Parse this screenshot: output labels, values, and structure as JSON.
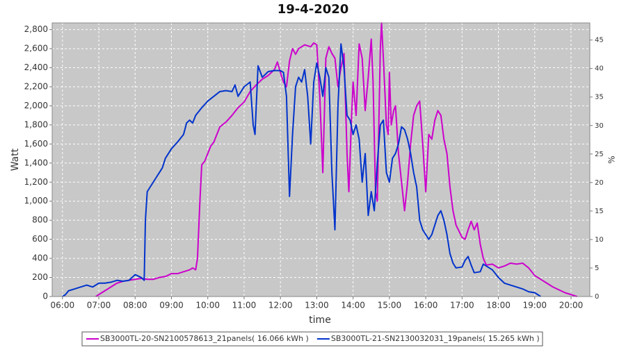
{
  "chart_data": {
    "type": "line",
    "title": "19-4-2020",
    "x_label": "time",
    "y_label": "Watt",
    "y2_label": "%",
    "xlim": [
      "05:43",
      "20:31"
    ],
    "xticks": [
      "06:00",
      "07:00",
      "08:00",
      "09:00",
      "10:00",
      "11:00",
      "12:00",
      "13:00",
      "14:00",
      "15:00",
      "16:00",
      "17:00",
      "18:00",
      "19:00",
      "20:00"
    ],
    "ylim": [
      0,
      2870
    ],
    "yticks": [
      0,
      200,
      400,
      600,
      800,
      {
        "value": 1000,
        "label": "1,000"
      },
      {
        "value": 1200,
        "label": "1,200"
      },
      {
        "value": 1400,
        "label": "1,400"
      },
      {
        "value": 1600,
        "label": "1,600"
      },
      {
        "value": 1800,
        "label": "1,800"
      },
      {
        "value": 2000,
        "label": "2,000"
      },
      {
        "value": 2200,
        "label": "2,200"
      },
      {
        "value": 2400,
        "label": "2,400"
      },
      {
        "value": 2600,
        "label": "2,600"
      },
      {
        "value": 2800,
        "label": "2,800"
      }
    ],
    "y2lim": [
      0,
      48
    ],
    "y2ticks": [
      0,
      5,
      10,
      15,
      20,
      25,
      30,
      35,
      40,
      45
    ],
    "grid": true,
    "legend": "bottom",
    "series": [
      {
        "name": "SB3000TL-20-SN2100578613_21panels( 16.066 kWh )",
        "color": "#cc00cc",
        "x": [
          "06:55",
          "07:00",
          "07:10",
          "07:20",
          "07:30",
          "07:40",
          "07:50",
          "08:00",
          "08:10",
          "08:20",
          "08:30",
          "08:40",
          "08:50",
          "09:00",
          "09:10",
          "09:20",
          "09:30",
          "09:35",
          "09:40",
          "09:43",
          "09:47",
          "09:50",
          "09:55",
          "10:00",
          "10:05",
          "10:10",
          "10:15",
          "10:20",
          "10:30",
          "10:40",
          "10:50",
          "11:00",
          "11:10",
          "11:20",
          "11:30",
          "11:40",
          "11:50",
          "11:55",
          "12:00",
          "12:05",
          "12:10",
          "12:15",
          "12:20",
          "12:25",
          "12:30",
          "12:40",
          "12:50",
          "12:55",
          "13:00",
          "13:05",
          "13:10",
          "13:15",
          "13:20",
          "13:25",
          "13:30",
          "13:35",
          "13:40",
          "13:45",
          "13:50",
          "13:53",
          "13:57",
          "14:00",
          "14:05",
          "14:10",
          "14:15",
          "14:20",
          "14:25",
          "14:30",
          "14:33",
          "14:37",
          "14:40",
          "14:45",
          "14:47",
          "14:50",
          "14:55",
          "14:58",
          "15:00",
          "15:03",
          "15:07",
          "15:10",
          "15:15",
          "15:20",
          "15:25",
          "15:30",
          "15:35",
          "15:40",
          "15:45",
          "15:50",
          "15:55",
          "16:00",
          "16:05",
          "16:10",
          "16:15",
          "16:20",
          "16:25",
          "16:30",
          "16:35",
          "16:40",
          "16:45",
          "16:50",
          "17:00",
          "17:05",
          "17:10",
          "17:15",
          "17:20",
          "17:25",
          "17:30",
          "17:35",
          "17:40",
          "17:50",
          "18:00",
          "18:10",
          "18:20",
          "18:30",
          "18:40",
          "18:50",
          "19:00",
          "19:10",
          "19:20",
          "19:30",
          "19:40",
          "19:50",
          "20:00",
          "20:10"
        ],
        "values": [
          0,
          20,
          60,
          100,
          140,
          160,
          170,
          180,
          190,
          180,
          180,
          200,
          210,
          240,
          240,
          260,
          280,
          300,
          280,
          400,
          1000,
          1380,
          1420,
          1500,
          1580,
          1620,
          1700,
          1780,
          1830,
          1900,
          1980,
          2040,
          2150,
          2220,
          2280,
          2320,
          2380,
          2460,
          2350,
          2250,
          2200,
          2470,
          2600,
          2540,
          2600,
          2640,
          2620,
          2660,
          2640,
          2100,
          1300,
          2500,
          2620,
          2550,
          2500,
          2200,
          2400,
          2550,
          1500,
          1100,
          1800,
          2250,
          1900,
          2650,
          2500,
          1950,
          2300,
          2700,
          2250,
          1100,
          1000,
          2600,
          2870,
          2500,
          1800,
          1700,
          2350,
          1800,
          1950,
          2000,
          1500,
          1200,
          900,
          1200,
          1600,
          1900,
          2000,
          2050,
          1600,
          1100,
          1700,
          1650,
          1850,
          1950,
          1900,
          1650,
          1500,
          1150,
          900,
          750,
          620,
          600,
          700,
          790,
          700,
          770,
          550,
          400,
          330,
          340,
          300,
          320,
          350,
          340,
          350,
          300,
          220,
          180,
          140,
          100,
          70,
          40,
          20,
          0
        ]
      },
      {
        "name": "SB3000TL-21-SN2130032031_19panels( 15.265 kWh )",
        "color": "#0033cc",
        "x": [
          "06:00",
          "06:05",
          "06:10",
          "06:20",
          "06:30",
          "06:40",
          "06:50",
          "07:00",
          "07:10",
          "07:20",
          "07:30",
          "07:40",
          "07:50",
          "08:00",
          "08:10",
          "08:15",
          "08:17",
          "08:20",
          "08:25",
          "08:30",
          "08:35",
          "08:40",
          "08:45",
          "08:50",
          "09:00",
          "09:10",
          "09:20",
          "09:25",
          "09:30",
          "09:35",
          "09:40",
          "09:50",
          "10:00",
          "10:10",
          "10:20",
          "10:30",
          "10:40",
          "10:45",
          "10:50",
          "11:00",
          "11:10",
          "11:15",
          "11:18",
          "11:23",
          "11:30",
          "11:40",
          "11:50",
          "12:00",
          "12:05",
          "12:10",
          "12:15",
          "12:20",
          "12:25",
          "12:30",
          "12:35",
          "12:40",
          "12:45",
          "12:50",
          "12:55",
          "13:00",
          "13:05",
          "13:10",
          "13:15",
          "13:20",
          "13:25",
          "13:30",
          "13:35",
          "13:40",
          "13:45",
          "13:50",
          "13:55",
          "14:00",
          "14:05",
          "14:10",
          "14:15",
          "14:20",
          "14:25",
          "14:30",
          "14:35",
          "14:40",
          "14:45",
          "14:50",
          "14:55",
          "15:00",
          "15:05",
          "15:10",
          "15:15",
          "15:20",
          "15:25",
          "15:30",
          "15:35",
          "15:40",
          "15:45",
          "15:50",
          "15:55",
          "16:00",
          "16:05",
          "16:10",
          "16:15",
          "16:20",
          "16:25",
          "16:30",
          "16:35",
          "16:40",
          "16:45",
          "16:50",
          "17:00",
          "17:05",
          "17:10",
          "17:15",
          "17:20",
          "17:30",
          "17:35",
          "17:40",
          "17:50",
          "18:00",
          "18:10",
          "18:20",
          "18:30",
          "18:40",
          "18:50",
          "19:00",
          "19:10"
        ],
        "values": [
          0,
          20,
          60,
          80,
          100,
          120,
          100,
          140,
          140,
          150,
          170,
          160,
          170,
          230,
          200,
          170,
          800,
          1100,
          1150,
          1200,
          1250,
          1300,
          1350,
          1450,
          1550,
          1620,
          1700,
          1820,
          1850,
          1820,
          1900,
          1980,
          2050,
          2100,
          2150,
          2160,
          2150,
          2220,
          2100,
          2200,
          2250,
          1800,
          1700,
          2420,
          2300,
          2360,
          2370,
          2370,
          2350,
          2100,
          1050,
          1700,
          2200,
          2300,
          2250,
          2380,
          2100,
          1600,
          2250,
          2450,
          2300,
          2100,
          2400,
          2300,
          1300,
          700,
          2000,
          2650,
          2400,
          1900,
          1850,
          1700,
          1800,
          1650,
          1200,
          1500,
          850,
          1100,
          900,
          1400,
          1800,
          1850,
          1300,
          1200,
          1450,
          1500,
          1600,
          1780,
          1750,
          1650,
          1500,
          1300,
          1150,
          800,
          700,
          650,
          600,
          650,
          750,
          850,
          900,
          800,
          650,
          450,
          350,
          300,
          310,
          380,
          420,
          330,
          250,
          260,
          340,
          320,
          280,
          200,
          140,
          120,
          100,
          80,
          50,
          40,
          0
        ]
      }
    ]
  }
}
